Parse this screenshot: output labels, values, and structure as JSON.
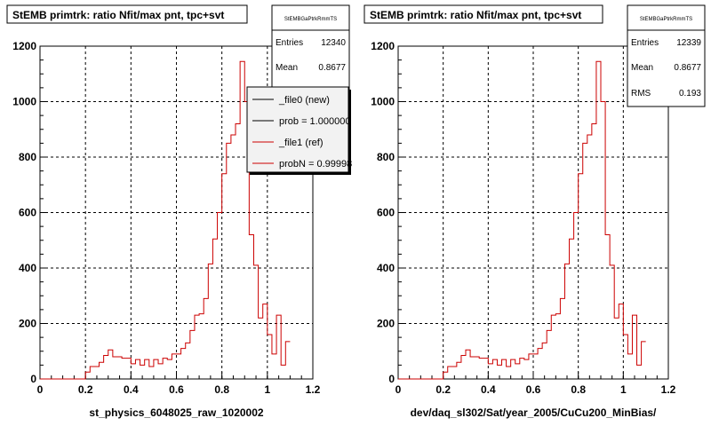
{
  "chart_data": [
    {
      "type": "histogram",
      "title": "StEMB primtrk: ratio Nfit/max pnt, tpc+svt",
      "xlabel": "st_physics_6048025_raw_1020002",
      "ylabel": "",
      "xlim": [
        0,
        1.2
      ],
      "ylim": [
        0,
        1200
      ],
      "x_ticks": [
        "0",
        "0.2",
        "0.4",
        "0.6",
        "0.8",
        "1",
        "1.2"
      ],
      "y_ticks": [
        "0",
        "200",
        "400",
        "600",
        "800",
        "1000",
        "1200"
      ],
      "grid": true,
      "bin_width": 0.02,
      "x_start": 0.0,
      "values": [
        0,
        0,
        0,
        0,
        0,
        0,
        0,
        0,
        0,
        0,
        25,
        45,
        45,
        60,
        85,
        105,
        80,
        80,
        75,
        75,
        55,
        70,
        50,
        70,
        45,
        70,
        55,
        75,
        70,
        90,
        90,
        110,
        130,
        175,
        230,
        235,
        290,
        415,
        505,
        600,
        740,
        850,
        880,
        920,
        1145,
        1000,
        520,
        410,
        220,
        270,
        160,
        90,
        230,
        50,
        135
      ],
      "stats": {
        "header": "StEMBGaPtrkRmmTS",
        "entries_label": "Entries",
        "entries": "12340",
        "mean_label": "Mean",
        "mean": "0.8677"
      },
      "legend": {
        "position": "top-right",
        "entries": [
          {
            "label": "_file0 (new)",
            "color": "#000000"
          },
          {
            "label": "prob = 1.000000",
            "color": "#000000"
          },
          {
            "label": "_file1 (ref)",
            "color": "#cc0000"
          },
          {
            "label": "probN = 0.99998",
            "color": "#cc0000"
          }
        ]
      },
      "line_color": "#cc0000"
    },
    {
      "type": "histogram",
      "title": "StEMB primtrk: ratio Nfit/max pnt, tpc+svt",
      "xlabel": "dev/daq_sl302/Sat/year_2005/CuCu200_MinBias/",
      "ylabel": "",
      "xlim": [
        0,
        1.2
      ],
      "ylim": [
        0,
        1200
      ],
      "x_ticks": [
        "0",
        "0.2",
        "0.4",
        "0.6",
        "0.8",
        "1",
        "1.2"
      ],
      "y_ticks": [
        "0",
        "200",
        "400",
        "600",
        "800",
        "1000",
        "1200"
      ],
      "grid": true,
      "bin_width": 0.02,
      "x_start": 0.0,
      "values": [
        0,
        0,
        0,
        0,
        0,
        0,
        0,
        0,
        0,
        0,
        25,
        45,
        45,
        60,
        85,
        105,
        80,
        80,
        75,
        75,
        55,
        70,
        50,
        70,
        45,
        70,
        55,
        75,
        70,
        90,
        90,
        110,
        130,
        175,
        230,
        235,
        290,
        415,
        505,
        600,
        740,
        850,
        880,
        920,
        1145,
        1000,
        520,
        410,
        220,
        270,
        160,
        90,
        230,
        50,
        135
      ],
      "stats": {
        "header": "StEMBGaPtrkRmmTS",
        "entries_label": "Entries",
        "entries": "12339",
        "mean_label": "Mean",
        "mean": "0.8677",
        "rms_label": "RMS",
        "rms": "0.193"
      },
      "line_color": "#cc0000"
    }
  ]
}
